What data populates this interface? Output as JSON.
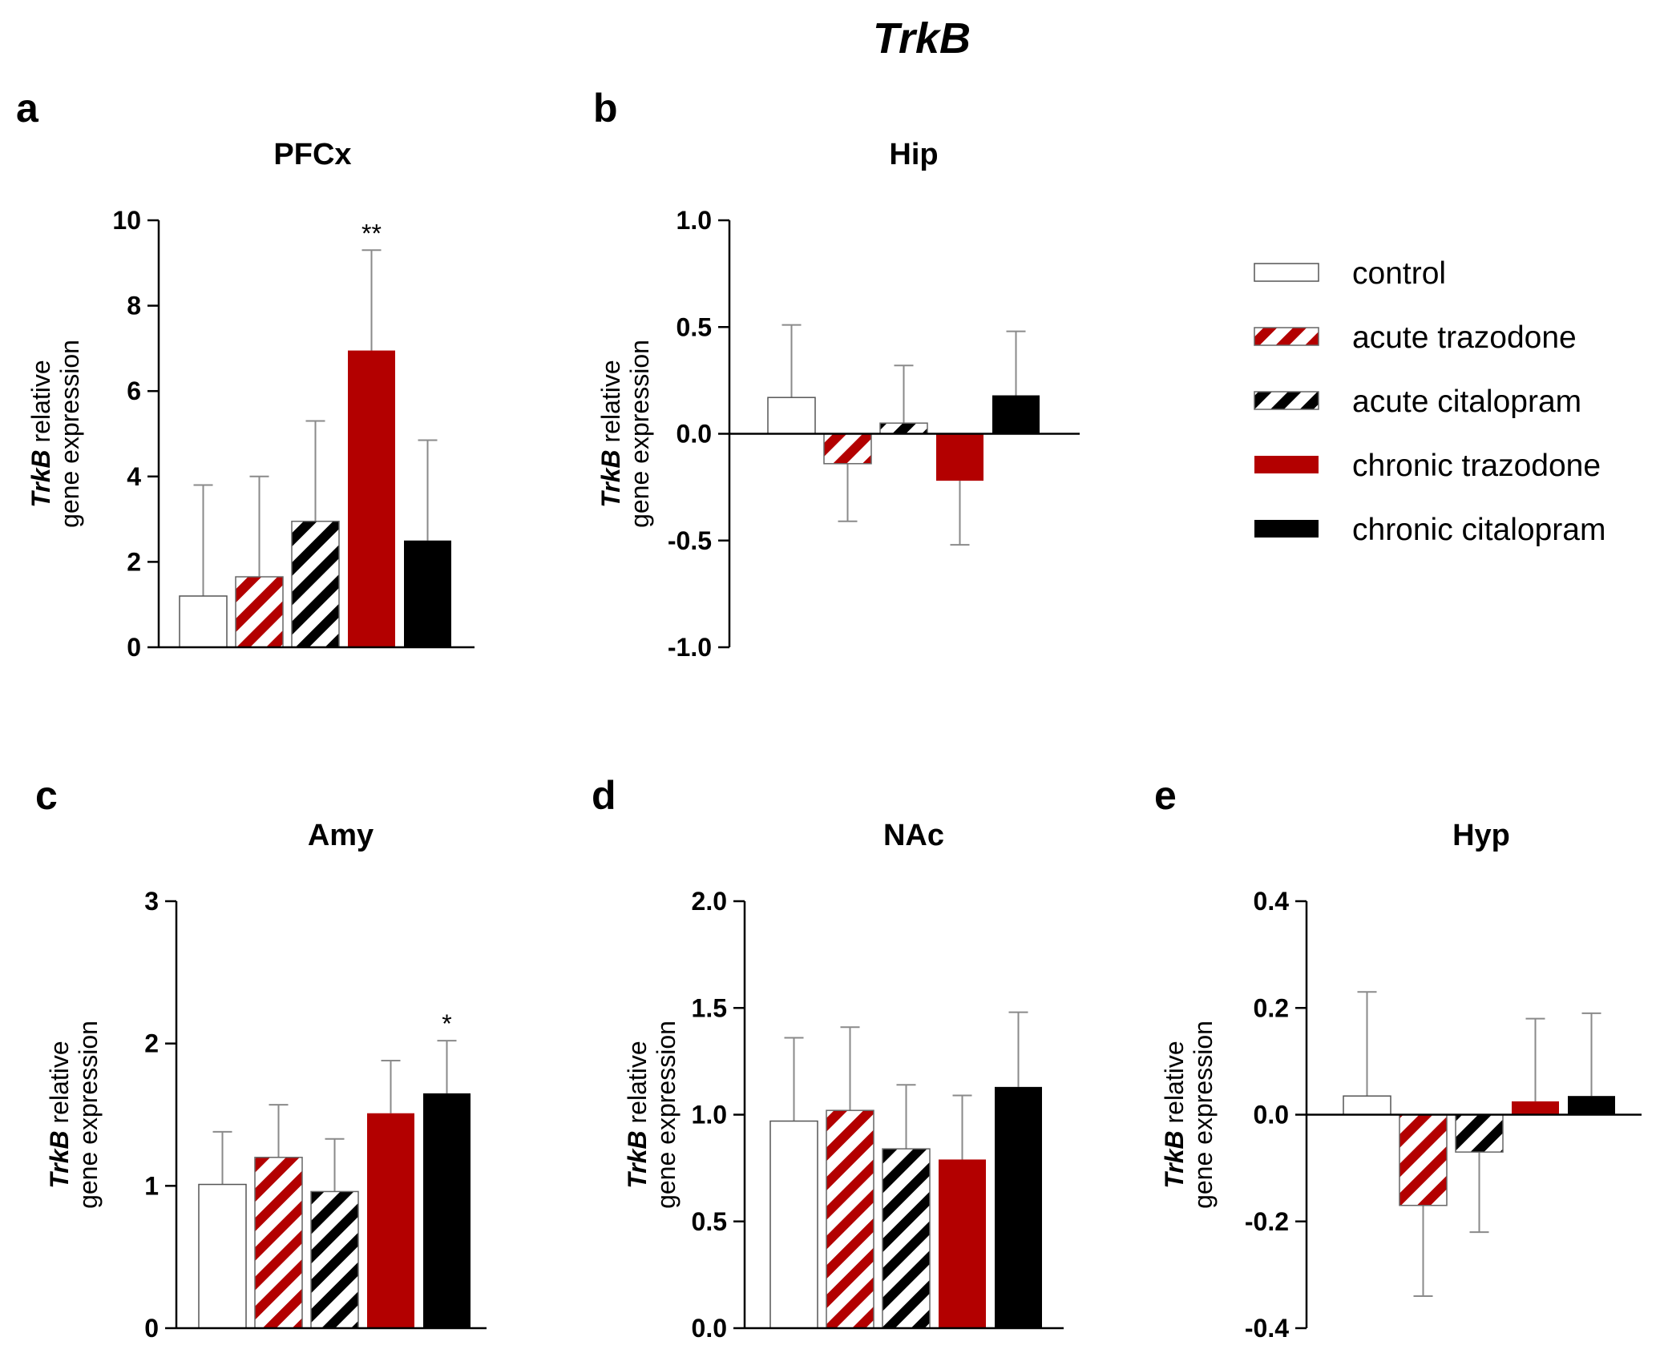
{
  "figure": {
    "title": "TrkB",
    "ylabel_italic": "TrkB",
    "ylabel_rest": " relative",
    "ylabel_line2": "gene expression"
  },
  "colors": {
    "control": "#ffffff",
    "red": "#b30000",
    "black": "#000000",
    "axis": "#000000",
    "error": "#8a8a8a"
  },
  "legend": [
    {
      "key": "control",
      "label": "control",
      "fill": "white"
    },
    {
      "key": "acute_trazodone",
      "label": "acute trazodone",
      "fill": "hatch-red"
    },
    {
      "key": "acute_citalopram",
      "label": "acute citalopram",
      "fill": "hatch-black"
    },
    {
      "key": "chronic_trazodone",
      "label": "chronic trazodone",
      "fill": "red"
    },
    {
      "key": "chronic_citalopram",
      "label": "chronic citalopram",
      "fill": "black"
    }
  ],
  "chart_data": [
    {
      "type": "bar",
      "letter": "a",
      "title": "PFCx",
      "categories": [
        "control",
        "acute trazodone",
        "acute citalopram",
        "chronic trazodone",
        "chronic citalopram"
      ],
      "values": [
        1.2,
        1.65,
        2.95,
        6.95,
        2.5
      ],
      "errors": [
        2.6,
        2.35,
        2.35,
        2.35,
        2.35
      ],
      "ylim": [
        0,
        10
      ],
      "yticks": [
        0,
        2,
        4,
        6,
        8,
        10
      ],
      "ytick_labels": [
        "0",
        "2",
        "4",
        "6",
        "8",
        "10"
      ],
      "annotations": [
        {
          "bar": 3,
          "text": "**"
        }
      ]
    },
    {
      "type": "bar",
      "letter": "b",
      "title": "Hip",
      "categories": [
        "control",
        "acute trazodone",
        "acute citalopram",
        "chronic trazodone",
        "chronic citalopram"
      ],
      "values": [
        0.17,
        -0.14,
        0.05,
        -0.22,
        0.18
      ],
      "errors": [
        0.34,
        0.27,
        0.27,
        0.3,
        0.3
      ],
      "ylim": [
        -1.0,
        1.0
      ],
      "yticks": [
        -1.0,
        -0.5,
        0.0,
        0.5,
        1.0
      ],
      "ytick_labels": [
        "-1.0",
        "-0.5",
        "0.0",
        "0.5",
        "1.0"
      ],
      "annotations": []
    },
    {
      "type": "bar",
      "letter": "c",
      "title": "Amy",
      "categories": [
        "control",
        "acute trazodone",
        "acute citalopram",
        "chronic trazodone",
        "chronic citalopram"
      ],
      "values": [
        1.01,
        1.2,
        0.96,
        1.51,
        1.65
      ],
      "errors": [
        0.37,
        0.37,
        0.37,
        0.37,
        0.37
      ],
      "ylim": [
        0,
        3
      ],
      "yticks": [
        0,
        1,
        2,
        3
      ],
      "ytick_labels": [
        "0",
        "1",
        "2",
        "3"
      ],
      "annotations": [
        {
          "bar": 4,
          "text": "*"
        }
      ]
    },
    {
      "type": "bar",
      "letter": "d",
      "title": "NAc",
      "categories": [
        "control",
        "acute trazodone",
        "acute citalopram",
        "chronic trazodone",
        "chronic citalopram"
      ],
      "values": [
        0.97,
        1.02,
        0.84,
        0.79,
        1.13
      ],
      "errors": [
        0.39,
        0.39,
        0.3,
        0.3,
        0.35
      ],
      "ylim": [
        0.0,
        2.0
      ],
      "yticks": [
        0.0,
        0.5,
        1.0,
        1.5,
        2.0
      ],
      "ytick_labels": [
        "0.0",
        "0.5",
        "1.0",
        "1.5",
        "2.0"
      ],
      "annotations": []
    },
    {
      "type": "bar",
      "letter": "e",
      "title": "Hyp",
      "categories": [
        "control",
        "acute trazodone",
        "acute citalopram",
        "chronic trazodone",
        "chronic citalopram"
      ],
      "values": [
        0.035,
        -0.17,
        -0.07,
        0.025,
        0.035
      ],
      "errors": [
        0.195,
        0.17,
        0.15,
        0.155,
        0.155
      ],
      "ylim": [
        -0.4,
        0.4
      ],
      "yticks": [
        -0.4,
        -0.2,
        0.0,
        0.2,
        0.4
      ],
      "ytick_labels": [
        "-0.4",
        "-0.2",
        "0.0",
        "0.2",
        "0.4"
      ],
      "annotations": []
    }
  ]
}
